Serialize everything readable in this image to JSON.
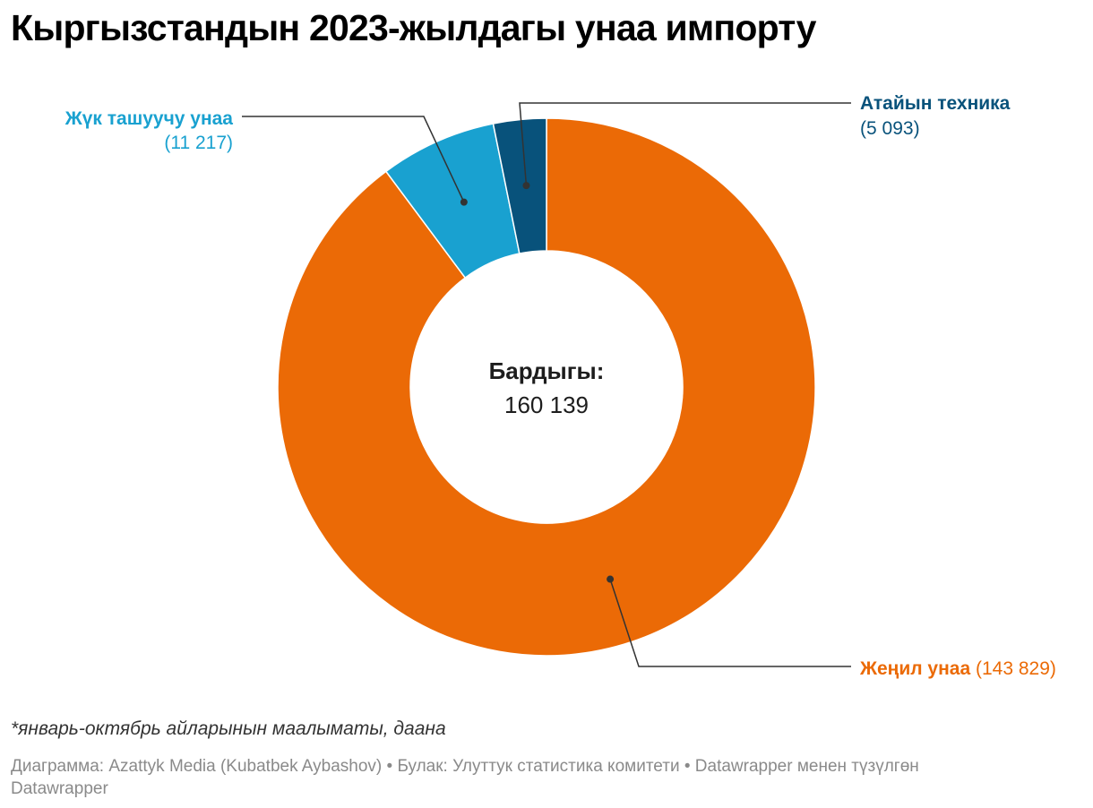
{
  "title": "Кыргызстандын 2023-жылдагы унаа импорту",
  "chart_data": {
    "type": "pie",
    "donut": true,
    "center_label": "Бардыгы:",
    "center_value": "160 139",
    "slices": [
      {
        "name": "Жеңил унаа",
        "value": 143829,
        "value_label": "143 829",
        "color": "#eb6a06"
      },
      {
        "name": "Жүк ташуучу унаа",
        "value": 11217,
        "value_label": "11 217",
        "color": "#19a1d0"
      },
      {
        "name": "Атайын техника",
        "value": 5093,
        "value_label": "5 093",
        "color": "#08527b"
      }
    ]
  },
  "footnote": "*январь-октябрь айларынын маалыматы, даана",
  "source": {
    "chart_by": "Диаграмма: Azattyk Media (Kubatbek Aybashov)",
    "source_text": "Булак: Улуттук статистика комитети",
    "made_with": "Datawrapper менен түзүлгөн",
    "logo": "Datawrapper"
  }
}
